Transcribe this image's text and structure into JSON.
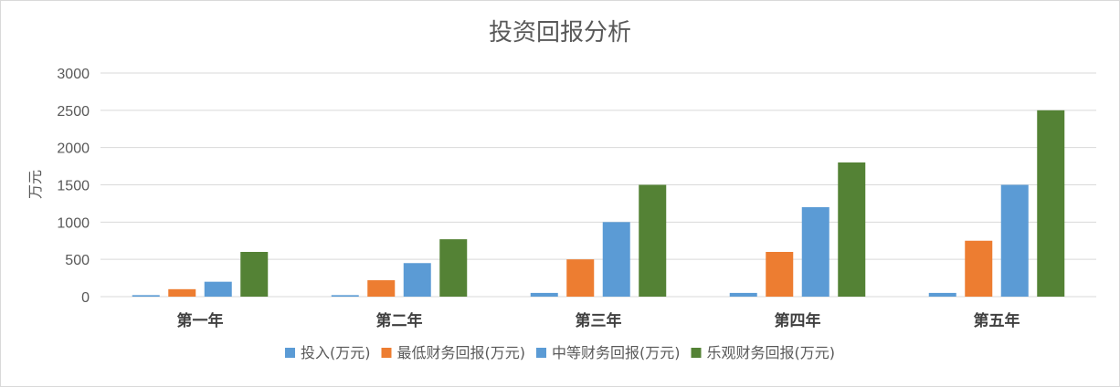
{
  "chart_data": {
    "type": "bar",
    "title": "投资回报分析",
    "ylabel": "万元",
    "xlabel": "",
    "ylim": [
      0,
      3000
    ],
    "yticks": [
      0,
      500,
      1000,
      1500,
      2000,
      2500,
      3000
    ],
    "grid": true,
    "legend_position": "bottom",
    "categories": [
      "第一年",
      "第二年",
      "第三年",
      "第四年",
      "第五年"
    ],
    "series": [
      {
        "name": "投入(万元)",
        "color": "#5b9bd5",
        "values": [
          20,
          20,
          50,
          50,
          50
        ]
      },
      {
        "name": "最低财务回报(万元)",
        "color": "#ed7d31",
        "values": [
          100,
          220,
          500,
          600,
          750
        ]
      },
      {
        "name": "中等财务回报(万元)",
        "color": "#5b9bd5",
        "values": [
          200,
          450,
          1000,
          1200,
          1500
        ]
      },
      {
        "name": "乐观财务回报(万元)",
        "color": "#548235",
        "values": [
          600,
          770,
          1500,
          1800,
          2500
        ]
      }
    ]
  }
}
